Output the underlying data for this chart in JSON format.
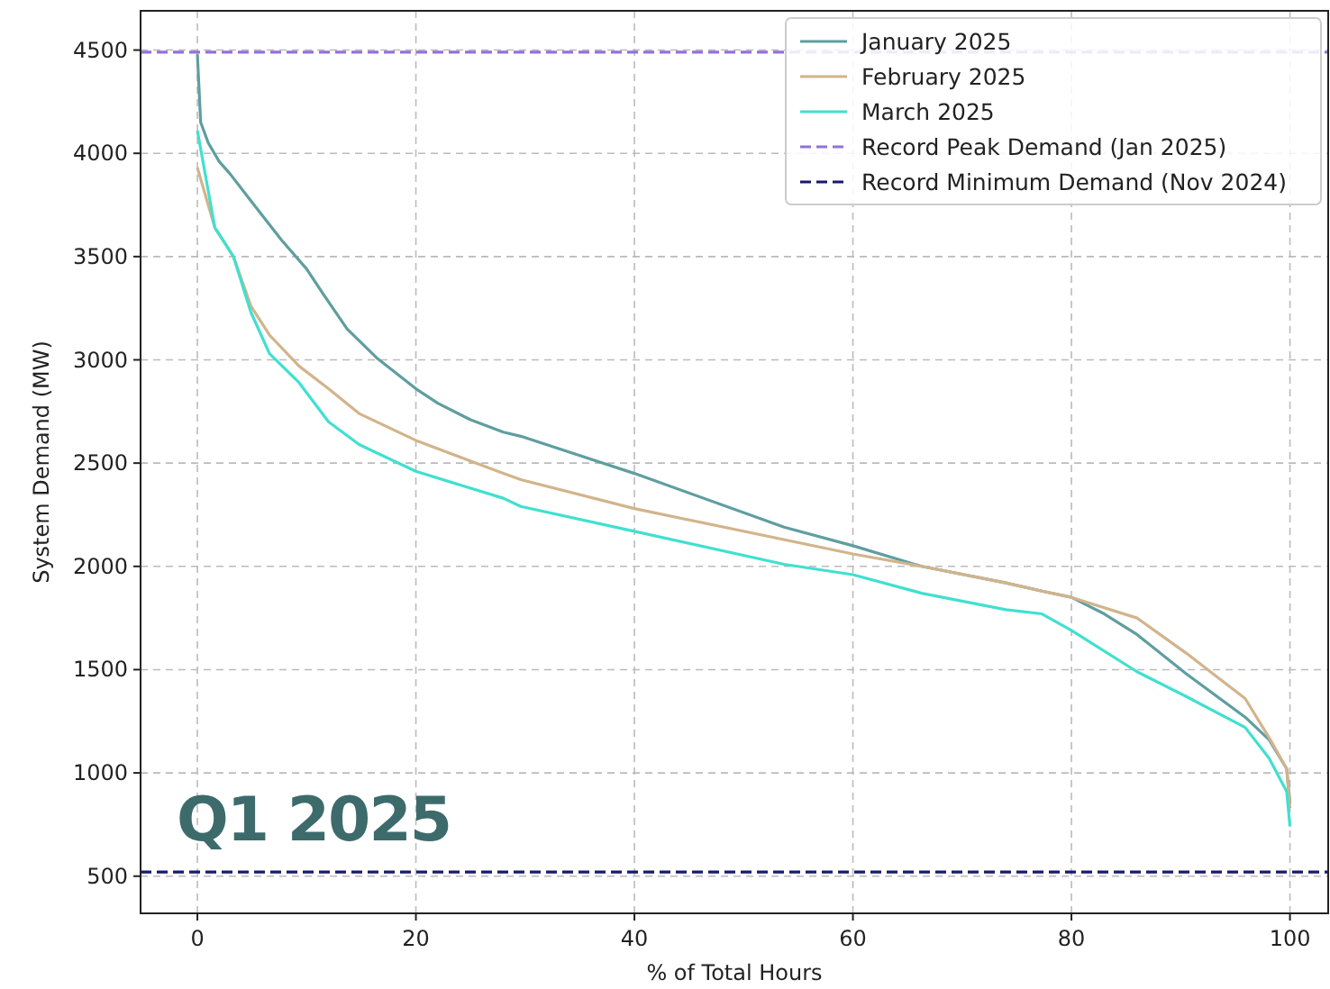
{
  "chart_data": {
    "type": "line",
    "xlabel": "% of Total Hours",
    "ylabel": "System Demand (MW)",
    "xlim": [
      -5.2,
      103.5
    ],
    "ylim": [
      320,
      4690
    ],
    "xticks": [
      0,
      20,
      40,
      60,
      80,
      100
    ],
    "yticks": [
      500,
      1000,
      1500,
      2000,
      2500,
      3000,
      3500,
      4000,
      4500
    ],
    "grid": true,
    "legend": "top right",
    "line_style": "solid",
    "annotations": [
      "Q1 2025"
    ],
    "ref_lines": [
      {
        "axis": "y",
        "value": 4490,
        "label": "Record Peak Demand (Jan 2025)",
        "color": "#9370db",
        "line_style": "dashed"
      },
      {
        "axis": "y",
        "value": 520,
        "label": "Record Minimum Demand (Nov 2024)",
        "color": "#191970",
        "line_style": "dashed"
      }
    ],
    "series": [
      {
        "name": "January 2025",
        "color": "#5f9ea0",
        "x": [
          0,
          0.3,
          1,
          2,
          3,
          4.9,
          7.7,
          10,
          11.5,
          13.7,
          16.4,
          20,
          22,
          25,
          28,
          29.6,
          40,
          53.7,
          60,
          66.3,
          74,
          77.3,
          80,
          83,
          86,
          90.5,
          95.9,
          98.1,
          99.7,
          100
        ],
        "values": [
          4480,
          4150,
          4050,
          3960,
          3900,
          3770,
          3580,
          3440,
          3320,
          3150,
          3010,
          2860,
          2790,
          2710,
          2650,
          2630,
          2450,
          2190,
          2100,
          2000,
          1920,
          1880,
          1850,
          1770,
          1670,
          1480,
          1270,
          1160,
          1020,
          850
        ]
      },
      {
        "name": "February 2025",
        "color": "#d2b48c",
        "x": [
          0,
          1.6,
          3.3,
          4.9,
          6.6,
          9.3,
          12,
          14.8,
          20,
          28,
          29.6,
          40,
          60,
          66.3,
          74,
          77.3,
          80,
          86,
          90.5,
          95.9,
          98.1,
          99.7,
          100
        ],
        "values": [
          3930,
          3640,
          3500,
          3260,
          3120,
          2970,
          2860,
          2740,
          2610,
          2450,
          2420,
          2280,
          2060,
          2000,
          1920,
          1880,
          1850,
          1750,
          1580,
          1360,
          1170,
          1020,
          830
        ]
      },
      {
        "name": "March 2025",
        "color": "#40e0d0",
        "x": [
          0,
          1.6,
          3.3,
          4.9,
          6.6,
          9.3,
          12,
          14.8,
          20,
          28,
          29.6,
          40,
          53.7,
          60,
          66.3,
          74,
          77.3,
          80,
          86,
          90.5,
          95.9,
          98.1,
          99.7,
          100
        ],
        "values": [
          4110,
          3640,
          3500,
          3230,
          3030,
          2890,
          2700,
          2590,
          2460,
          2330,
          2290,
          2170,
          2010,
          1960,
          1870,
          1790,
          1770,
          1690,
          1490,
          1370,
          1220,
          1070,
          910,
          740
        ]
      }
    ]
  }
}
